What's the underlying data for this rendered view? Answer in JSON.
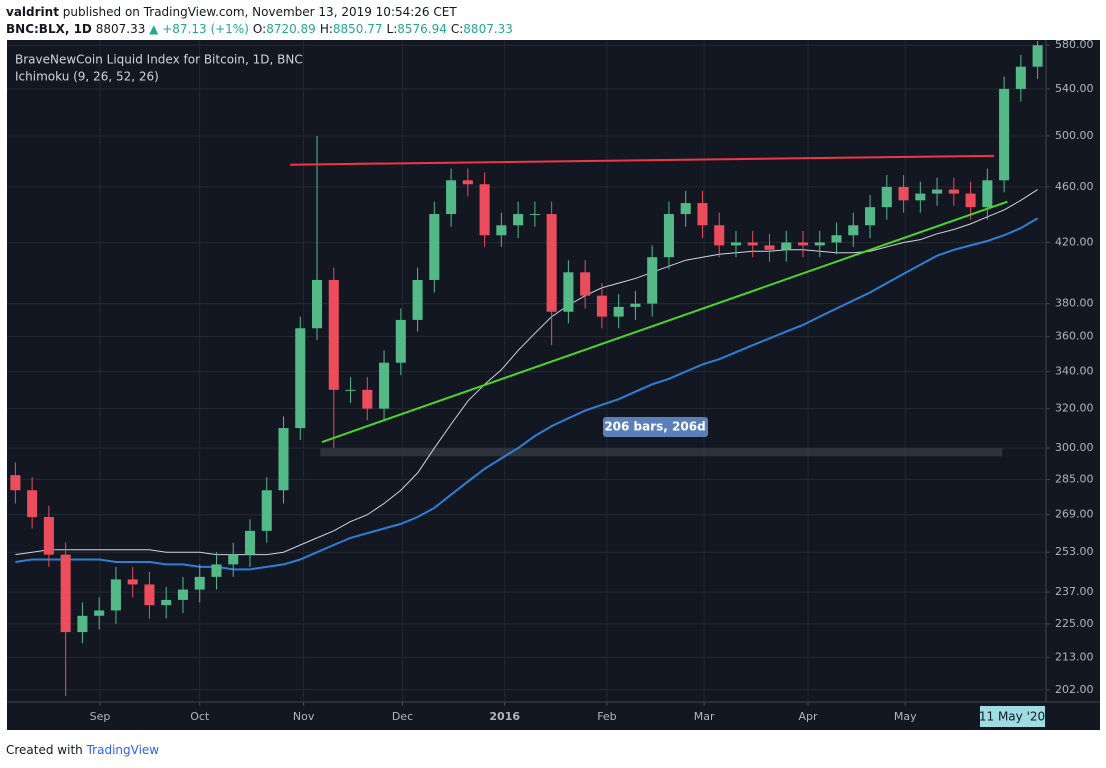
{
  "header": {
    "publisher": "valdrint",
    "published": "published on TradingView.com, November 13, 2019 10:54:26 CET",
    "symbol": "BNC:BLX, 1D",
    "price": "8807.33",
    "change": "▲ +87.13 (+1%)",
    "ohlc": [
      {
        "label": "O:",
        "value": "8720.89"
      },
      {
        "label": "H:",
        "value": "8850.77"
      },
      {
        "label": "L:",
        "value": "8576.94"
      },
      {
        "label": "C:",
        "value": "8807.33"
      }
    ]
  },
  "footer": {
    "created": "Created with",
    "brand": "TradingView"
  },
  "chart_data": {
    "type": "candlestick",
    "title": "BraveNewCoin Liquid Index for Bitcoin, 1D, BNC",
    "subtitle": "Ichimoku (9, 26, 52, 26)",
    "annotation": "206 bars, 206d",
    "cursor_label": "11 May '20",
    "log_y": true,
    "grid": true,
    "up_color": "#53b987",
    "down_color": "#eb4d5c",
    "open": [
      287,
      280,
      268,
      252,
      222,
      228,
      230,
      242,
      240,
      232,
      234,
      238,
      243,
      248,
      252,
      262,
      280,
      310,
      365,
      395,
      330,
      330,
      320,
      345,
      370,
      395,
      440,
      465,
      462,
      425,
      432,
      440,
      440,
      375,
      400,
      385,
      372,
      378,
      380,
      410,
      440,
      448,
      432,
      418,
      420,
      418,
      415,
      420,
      418,
      420,
      425,
      432,
      445,
      460,
      450,
      455,
      458,
      455,
      445,
      465,
      540,
      560
    ],
    "high": [
      293,
      286,
      273,
      257,
      233,
      235,
      247,
      247,
      245,
      239,
      243,
      248,
      253,
      257,
      267,
      286,
      316,
      372,
      500,
      403,
      337,
      337,
      352,
      377,
      403,
      449,
      474,
      474,
      471,
      441,
      449,
      449,
      449,
      408,
      408,
      393,
      386,
      388,
      418,
      449,
      457,
      457,
      441,
      428,
      428,
      426,
      428,
      428,
      428,
      434,
      441,
      454,
      469,
      469,
      464,
      467,
      467,
      464,
      474,
      551,
      571,
      584
    ],
    "low": [
      274,
      263,
      247,
      200,
      218,
      223,
      225,
      235,
      227,
      227,
      229,
      233,
      238,
      243,
      247,
      257,
      274,
      304,
      358,
      300,
      323,
      314,
      314,
      338,
      363,
      387,
      431,
      453,
      417,
      417,
      423,
      431,
      355,
      368,
      377,
      365,
      365,
      370,
      372,
      402,
      431,
      423,
      410,
      410,
      410,
      407,
      407,
      410,
      410,
      412,
      417,
      423,
      436,
      441,
      441,
      446,
      446,
      436,
      436,
      456,
      529,
      549
    ],
    "close": [
      280,
      268,
      252,
      222,
      228,
      230,
      242,
      240,
      232,
      234,
      238,
      243,
      248,
      252,
      262,
      280,
      310,
      365,
      395,
      330,
      330,
      320,
      345,
      370,
      395,
      440,
      465,
      462,
      425,
      432,
      440,
      440,
      375,
      400,
      385,
      372,
      378,
      380,
      410,
      440,
      448,
      432,
      418,
      420,
      418,
      415,
      420,
      418,
      420,
      425,
      432,
      445,
      460,
      450,
      455,
      458,
      455,
      445,
      465,
      540,
      560,
      580
    ],
    "series": [
      {
        "color": "#d1d4dc",
        "values": [
          252,
          253,
          254,
          254,
          254,
          254,
          254,
          254,
          254,
          253,
          253,
          253,
          252,
          252,
          252,
          252,
          253,
          256,
          259,
          262,
          266,
          269,
          274,
          280,
          288,
          300,
          312,
          324,
          333,
          341,
          352,
          362,
          372,
          379,
          385,
          390,
          393,
          396,
          400,
          404,
          408,
          410,
          412,
          413,
          414,
          414,
          415,
          415,
          414,
          413,
          413,
          414,
          417,
          420,
          422,
          426,
          429,
          433,
          438,
          443,
          450,
          458
        ]
      },
      {
        "color": "#2f7fd6",
        "values": [
          249,
          250,
          250,
          250,
          250,
          250,
          249,
          249,
          249,
          248,
          248,
          247,
          247,
          246,
          246,
          247,
          248,
          250,
          253,
          256,
          259,
          261,
          263,
          265,
          268,
          272,
          278,
          284,
          290,
          295,
          300,
          306,
          311,
          315,
          319,
          322,
          325,
          329,
          333,
          336,
          340,
          344,
          347,
          351,
          355,
          359,
          363,
          367,
          372,
          377,
          382,
          387,
          393,
          399,
          405,
          411,
          415,
          418,
          421,
          425,
          430,
          437
        ]
      }
    ],
    "trendlines": [
      {
        "color": "#f23645",
        "x": [
          16.4,
          58.4
        ],
        "values": [
          477,
          484
        ]
      },
      {
        "color": "#4cd626",
        "x": [
          18.3,
          59.2
        ],
        "values": [
          303,
          449
        ]
      }
    ],
    "zone": {
      "x": [
        18.2,
        58.9
      ],
      "values": [
        296,
        300
      ]
    },
    "xlim": [
      -0.5,
      61.5
    ],
    "xticks": [
      {
        "value": 5.05,
        "label": "Sep"
      },
      {
        "value": 11.0,
        "label": "Oct"
      },
      {
        "value": 17.2,
        "label": "Nov"
      },
      {
        "value": 23.1,
        "label": "Dec"
      },
      {
        "value": 29.2,
        "label": "2016"
      },
      {
        "value": 35.3,
        "label": "Feb"
      },
      {
        "value": 41.1,
        "label": "Mar"
      },
      {
        "value": 47.3,
        "label": "Apr"
      },
      {
        "value": 53.1,
        "label": "May"
      }
    ],
    "ylim": [
      198,
      585
    ],
    "yticks": [
      {
        "value": 580,
        "label": "580.00"
      },
      {
        "value": 540,
        "label": "540.00"
      },
      {
        "value": 500,
        "label": "500.00"
      },
      {
        "value": 460,
        "label": "460.00"
      },
      {
        "value": 420,
        "label": "420.00"
      },
      {
        "value": 380,
        "label": "380.00"
      },
      {
        "value": 360,
        "label": "360.00"
      },
      {
        "value": 340,
        "label": "340.00"
      },
      {
        "value": 320,
        "label": "320.00"
      },
      {
        "value": 300,
        "label": "300.00"
      },
      {
        "value": 285,
        "label": "285.00"
      },
      {
        "value": 269,
        "label": "269.00"
      },
      {
        "value": 253,
        "label": "253.00"
      },
      {
        "value": 237,
        "label": "237.00"
      },
      {
        "value": 225,
        "label": "225.00"
      },
      {
        "value": 213,
        "label": "213.00"
      },
      {
        "value": 202,
        "label": "202.00"
      }
    ]
  }
}
